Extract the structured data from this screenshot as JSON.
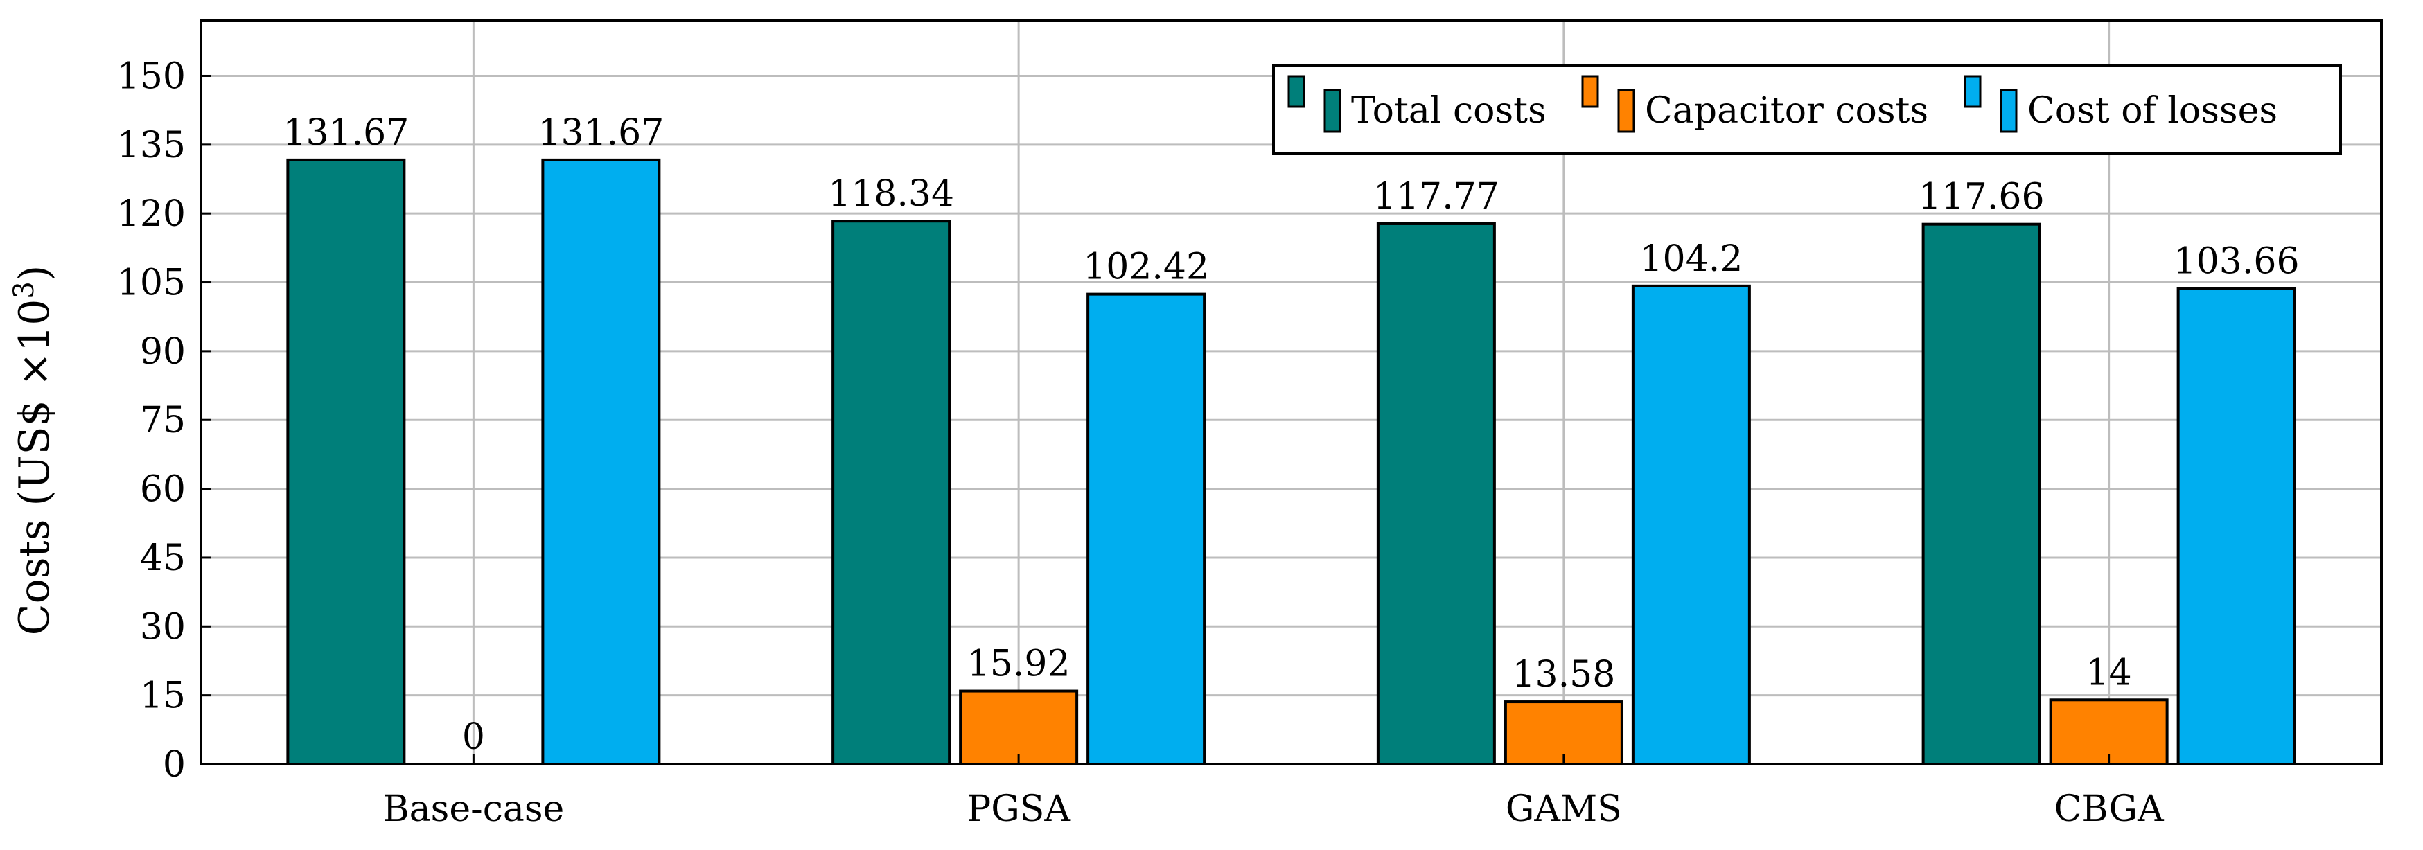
{
  "chart_data": {
    "type": "bar",
    "title": "",
    "xlabel": "",
    "ylabel": "Costs (US$ ×10",
    "ylabel_superscript": "3",
    "ylabel_suffix": ")",
    "categories": [
      "Base-case",
      "PGSA",
      "GAMS",
      "CBGA"
    ],
    "ylim": [
      0,
      162
    ],
    "yticks": [
      0,
      15,
      30,
      45,
      60,
      75,
      90,
      105,
      120,
      135,
      150
    ],
    "grid": true,
    "legend_position": "top-right",
    "series": [
      {
        "name": "Total costs",
        "color": "#007f7a",
        "values": [
          131.67,
          118.34,
          117.77,
          117.66
        ],
        "labels": [
          "131.67",
          "118.34",
          "117.77",
          "117.66"
        ]
      },
      {
        "name": "Capacitor costs",
        "color": "#ff8200",
        "values": [
          0,
          15.92,
          13.58,
          14
        ],
        "labels": [
          "0",
          "15.92",
          "13.58",
          "14"
        ]
      },
      {
        "name": "Cost of losses",
        "color": "#00aeef",
        "values": [
          131.67,
          102.42,
          104.2,
          103.66
        ],
        "labels": [
          "131.67",
          "102.42",
          "104.2",
          "103.66"
        ]
      }
    ]
  }
}
